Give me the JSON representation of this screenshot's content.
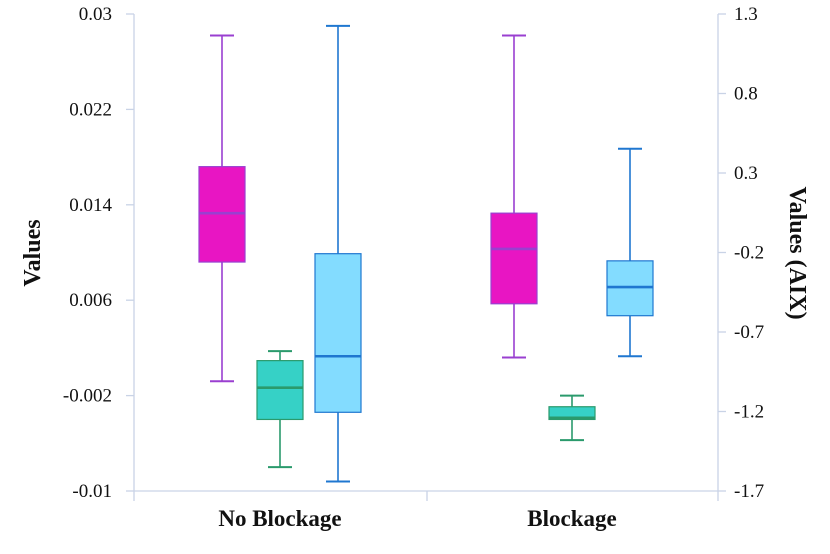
{
  "chart_data": {
    "type": "box",
    "categories": [
      "No Blockage",
      "Blockage"
    ],
    "ylabel": "Values",
    "y2label": "Values (AIX)",
    "ylim": [
      -0.01,
      0.03
    ],
    "yticks": [
      "0.03",
      "0.022",
      "0.014",
      "0.006",
      "-0.002",
      "-0.01"
    ],
    "y2lim": [
      -1.7,
      1.3
    ],
    "y2ticks": [
      "1.3",
      "0.8",
      "0.3",
      "-0.2",
      "-0.7",
      "-1.2",
      "-1.7"
    ],
    "grid": false,
    "legend": "none",
    "series": [
      {
        "axis": "left",
        "color": "#e815c3",
        "median_color": "#9a3fd0",
        "boxes": [
          {
            "category": "No Blockage",
            "min": -0.0008,
            "q1": 0.0092,
            "median": 0.0133,
            "q3": 0.0172,
            "max": 0.0282
          },
          {
            "category": "Blockage",
            "min": 0.0012,
            "q1": 0.0057,
            "median": 0.0103,
            "q3": 0.0133,
            "max": 0.0282
          }
        ]
      },
      {
        "axis": "right",
        "color": "#36d1c6",
        "median_color": "#2a9a6c",
        "boxes": [
          {
            "category": "No Blockage",
            "min": -1.55,
            "q1": -1.25,
            "median": -1.05,
            "q3": -0.88,
            "max": -0.82
          },
          {
            "category": "Blockage",
            "min": -1.38,
            "q1": -1.25,
            "median": -1.24,
            "q3": -1.17,
            "max": -1.1
          }
        ]
      },
      {
        "axis": "left",
        "color": "#83dcff",
        "median_color": "#1f77d0",
        "boxes": [
          {
            "category": "No Blockage",
            "min": -0.0092,
            "q1": -0.0034,
            "median": 0.0013,
            "q3": 0.0099,
            "max": 0.029
          },
          {
            "category": "Blockage",
            "min": 0.0013,
            "q1": 0.0047,
            "median": 0.0071,
            "q3": 0.0093,
            "max": 0.0187
          }
        ]
      }
    ]
  }
}
